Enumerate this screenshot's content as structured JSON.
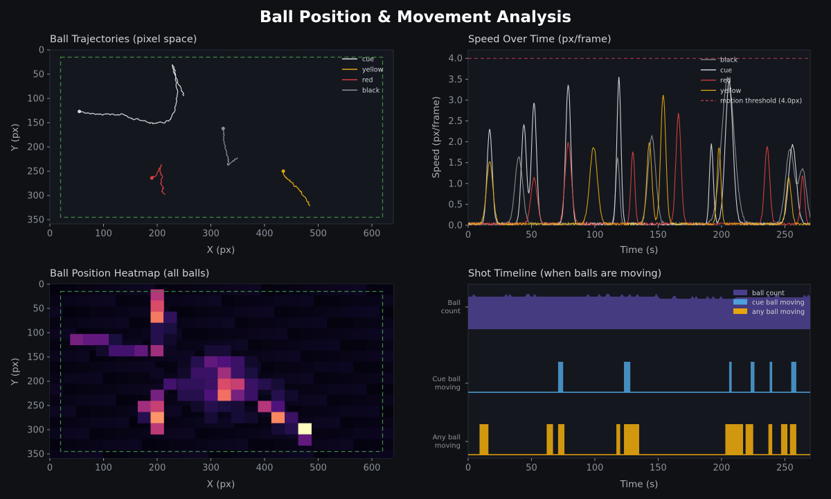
{
  "suptitle": "Ball Position & Movement Analysis",
  "colors": {
    "cue": "#d8dbe0",
    "yellow": "#e0a910",
    "red": "#d9413e",
    "black": "#8e9196",
    "threshold": "#c23b46",
    "table": "#3f8a3f",
    "count": "#4a3f8c",
    "cueMoving": "#4ea1dc",
    "anyMoving": "#e5a50d",
    "panel": "#14171e",
    "frame": "#2a2e36"
  },
  "chart_data": [
    {
      "type": "line",
      "title": "Ball Trajectories (pixel space)",
      "xlabel": "X (px)",
      "ylabel": "Y (px)",
      "xlim": [
        0,
        640
      ],
      "ylim": [
        355,
        0
      ],
      "y_inverted": true,
      "xticks": [
        0,
        100,
        200,
        300,
        400,
        500,
        600
      ],
      "yticks": [
        0,
        50,
        100,
        150,
        200,
        250,
        300,
        350
      ],
      "legend_position": "top-right",
      "table_boundary": {
        "x": [
          20,
          620
        ],
        "y": [
          15,
          345
        ]
      },
      "series": [
        {
          "name": "cue",
          "color": "#d8dbe0",
          "points": [
            [
              55,
              127
            ],
            [
              70,
              130
            ],
            [
              85,
              133
            ],
            [
              100,
              133
            ],
            [
              110,
              132
            ],
            [
              125,
              134
            ],
            [
              135,
              132
            ],
            [
              145,
              138
            ],
            [
              155,
              143
            ],
            [
              165,
              143
            ],
            [
              175,
              146
            ],
            [
              185,
              150
            ],
            [
              195,
              151
            ],
            [
              205,
              149
            ],
            [
              215,
              150
            ],
            [
              225,
              143
            ],
            [
              232,
              128
            ],
            [
              236,
              108
            ],
            [
              238,
              88
            ],
            [
              236,
              68
            ],
            [
              234,
              50
            ],
            [
              232,
              40
            ],
            [
              228,
              30
            ],
            [
              230,
              45
            ],
            [
              238,
              65
            ],
            [
              245,
              82
            ],
            [
              250,
              95
            ]
          ]
        },
        {
          "name": "yellow",
          "color": "#e0a910",
          "points": [
            [
              435,
              250
            ],
            [
              438,
              262
            ],
            [
              445,
              268
            ],
            [
              450,
              272
            ],
            [
              455,
              280
            ],
            [
              462,
              285
            ],
            [
              468,
              292
            ],
            [
              472,
              300
            ],
            [
              478,
              308
            ],
            [
              482,
              316
            ],
            [
              484,
              322
            ]
          ]
        },
        {
          "name": "red",
          "color": "#d9413e",
          "points": [
            [
              190,
              264
            ],
            [
              198,
              258
            ],
            [
              204,
              246
            ],
            [
              208,
              236
            ],
            [
              205,
              250
            ],
            [
              210,
              262
            ],
            [
              206,
              275
            ],
            [
              212,
              285
            ],
            [
              208,
              292
            ],
            [
              215,
              298
            ]
          ]
        },
        {
          "name": "black",
          "color": "#8e9196",
          "points": [
            [
              323,
              162
            ],
            [
              325,
              176
            ],
            [
              325,
              190
            ],
            [
              327,
              204
            ],
            [
              330,
              215
            ],
            [
              333,
              226
            ],
            [
              332,
              238
            ],
            [
              338,
              232
            ],
            [
              344,
              226
            ],
            [
              350,
              222
            ]
          ]
        }
      ]
    },
    {
      "type": "line",
      "title": "Speed Over Time (px/frame)",
      "xlabel": "Time (s)",
      "ylabel": "Speed (px/frame)",
      "xlim": [
        0,
        270
      ],
      "ylim": [
        0,
        4.2
      ],
      "xticks": [
        0,
        50,
        100,
        150,
        200,
        250
      ],
      "yticks": [
        0.0,
        0.5,
        1.0,
        1.5,
        2.0,
        2.5,
        3.0,
        3.5,
        4.0
      ],
      "legend_position": "top-right",
      "threshold": {
        "value": 4.0,
        "label": "motion threshold (4.0px)"
      },
      "series": [
        {
          "name": "black",
          "color": "#8e9196",
          "peaks": [
            [
              40,
              1.6,
              3
            ],
            [
              118,
              1.6,
              1.5
            ],
            [
              145,
              2.1,
              3
            ],
            [
              205,
              3.5,
              5
            ],
            [
              254,
              1.8,
              3.5
            ],
            [
              264,
              1.3,
              3
            ]
          ]
        },
        {
          "name": "cue",
          "color": "#d8dbe0",
          "peaks": [
            [
              17,
              2.3,
              2
            ],
            [
              44,
              2.4,
              2
            ],
            [
              52,
              2.9,
              2
            ],
            [
              79,
              3.35,
              2
            ],
            [
              119,
              3.5,
              1.6
            ],
            [
              192,
              1.9,
              1.5
            ],
            [
              206,
              3.4,
              3
            ],
            [
              256,
              1.9,
              3
            ]
          ]
        },
        {
          "name": "red",
          "color": "#d9413e",
          "peaks": [
            [
              52,
              1.1,
              2.5
            ],
            [
              79,
              1.95,
              2.5
            ],
            [
              130,
              1.75,
              1.5
            ],
            [
              166,
              2.65,
              2
            ],
            [
              236,
              1.85,
              2
            ],
            [
              264,
              1.15,
              1.5
            ]
          ]
        },
        {
          "name": "yellow",
          "color": "#e0a910",
          "peaks": [
            [
              17,
              1.5,
              2.5
            ],
            [
              99,
              1.85,
              3
            ],
            [
              143,
              1.95,
              2
            ],
            [
              154,
              3.1,
              2
            ],
            [
              198,
              1.85,
              1.5
            ],
            [
              253,
              1.1,
              2
            ]
          ]
        }
      ]
    },
    {
      "type": "heatmap",
      "title": "Ball Position Heatmap (all balls)",
      "xlabel": "X (px)",
      "ylabel": "Y (px)",
      "xlim": [
        0,
        640
      ],
      "ylim": [
        355,
        0
      ],
      "y_inverted": true,
      "xticks": [
        0,
        100,
        200,
        300,
        400,
        500,
        600
      ],
      "yticks": [
        0,
        50,
        100,
        150,
        200,
        250,
        300,
        350
      ],
      "table_boundary": {
        "x": [
          20,
          620
        ],
        "y": [
          15,
          345
        ]
      },
      "colormap": "magma",
      "cell_size": [
        24.6,
        22.8
      ],
      "cells": [
        [
          200,
          22,
          0.5
        ],
        [
          200,
          45,
          0.6
        ],
        [
          200,
          68,
          0.72
        ],
        [
          224,
          68,
          0.18
        ],
        [
          224,
          91,
          0.12
        ],
        [
          200,
          91,
          0.15
        ],
        [
          50,
          114,
          0.35
        ],
        [
          74,
          114,
          0.3
        ],
        [
          98,
          114,
          0.3
        ],
        [
          122,
          114,
          0.12
        ],
        [
          200,
          114,
          0.15
        ],
        [
          224,
          114,
          0.08
        ],
        [
          98,
          137,
          0.08
        ],
        [
          122,
          137,
          0.22
        ],
        [
          146,
          137,
          0.22
        ],
        [
          170,
          137,
          0.3
        ],
        [
          200,
          137,
          0.45
        ],
        [
          224,
          137,
          0.06
        ],
        [
          300,
          137,
          0.1
        ],
        [
          325,
          137,
          0.1
        ],
        [
          250,
          160,
          0.06
        ],
        [
          275,
          160,
          0.15
        ],
        [
          300,
          160,
          0.3
        ],
        [
          325,
          160,
          0.25
        ],
        [
          350,
          160,
          0.2
        ],
        [
          375,
          160,
          0.08
        ],
        [
          200,
          183,
          0.06
        ],
        [
          250,
          183,
          0.08
        ],
        [
          275,
          183,
          0.2
        ],
        [
          300,
          183,
          0.2
        ],
        [
          325,
          183,
          0.45
        ],
        [
          350,
          183,
          0.2
        ],
        [
          375,
          183,
          0.12
        ],
        [
          224,
          206,
          0.22
        ],
        [
          250,
          206,
          0.18
        ],
        [
          275,
          206,
          0.18
        ],
        [
          300,
          206,
          0.2
        ],
        [
          325,
          206,
          0.6
        ],
        [
          350,
          206,
          0.55
        ],
        [
          375,
          206,
          0.2
        ],
        [
          400,
          206,
          0.15
        ],
        [
          425,
          206,
          0.1
        ],
        [
          200,
          229,
          0.35
        ],
        [
          250,
          229,
          0.15
        ],
        [
          275,
          229,
          0.15
        ],
        [
          300,
          229,
          0.25
        ],
        [
          325,
          229,
          0.7
        ],
        [
          350,
          229,
          0.35
        ],
        [
          375,
          229,
          0.2
        ],
        [
          425,
          229,
          0.15
        ],
        [
          450,
          229,
          0.08
        ],
        [
          176,
          252,
          0.45
        ],
        [
          200,
          252,
          0.55
        ],
        [
          275,
          252,
          0.08
        ],
        [
          300,
          252,
          0.15
        ],
        [
          325,
          252,
          0.12
        ],
        [
          350,
          252,
          0.1
        ],
        [
          400,
          252,
          0.5
        ],
        [
          425,
          252,
          0.25
        ],
        [
          176,
          275,
          0.15
        ],
        [
          200,
          275,
          0.78
        ],
        [
          300,
          275,
          0.1
        ],
        [
          350,
          275,
          0.1
        ],
        [
          375,
          275,
          0.08
        ],
        [
          425,
          275,
          0.75
        ],
        [
          450,
          275,
          0.2
        ],
        [
          200,
          298,
          0.52
        ],
        [
          425,
          298,
          0.1
        ],
        [
          450,
          298,
          0.15
        ],
        [
          475,
          298,
          1.0
        ],
        [
          475,
          321,
          0.3
        ]
      ]
    },
    {
      "type": "area",
      "title": "Shot Timeline  (when balls are moving)",
      "xlabel": "Time (s)",
      "xlim": [
        0,
        270
      ],
      "xticks": [
        0,
        50,
        100,
        150,
        200,
        250
      ],
      "rows": [
        "Ball\ncount",
        "Cue ball\nmoving",
        "Any ball\nmoving"
      ],
      "legend_position": "top-right",
      "legend": [
        "ball count",
        "cue ball moving",
        "any ball moving"
      ],
      "cue_ball_moving": [
        [
          71,
          75
        ],
        [
          123,
          128
        ],
        [
          206,
          208
        ],
        [
          223,
          226
        ],
        [
          238,
          240
        ],
        [
          255,
          259
        ]
      ],
      "any_ball_moving": [
        [
          9,
          16
        ],
        [
          62,
          67
        ],
        [
          71,
          76
        ],
        [
          117,
          120
        ],
        [
          123,
          135
        ],
        [
          203,
          217
        ],
        [
          219,
          225
        ],
        [
          237,
          240
        ],
        [
          247,
          252
        ],
        [
          254,
          259
        ]
      ]
    }
  ]
}
